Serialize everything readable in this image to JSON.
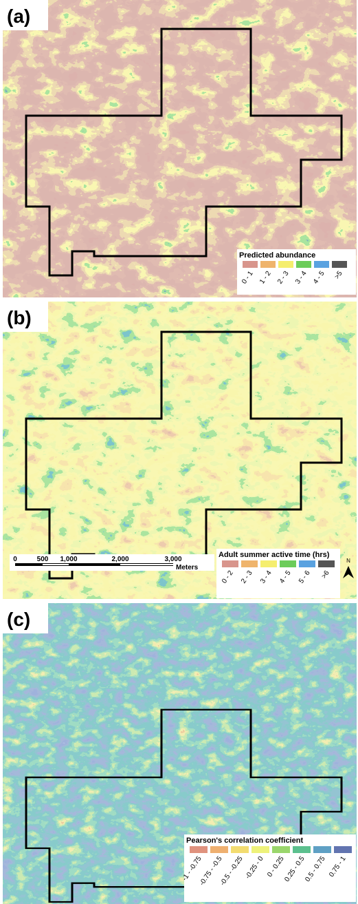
{
  "panels": [
    {
      "label": "(a)",
      "legend": {
        "title": "Predicted abundance",
        "classes": [
          {
            "label": "0 - 1",
            "color": "#d8958c"
          },
          {
            "label": "1 - 2",
            "color": "#efb46c"
          },
          {
            "label": "2 - 3",
            "color": "#f5ee6e"
          },
          {
            "label": "3 - 4",
            "color": "#6ccc5a"
          },
          {
            "label": "4 - 5",
            "color": "#5aa2e0"
          },
          {
            "label": ">5",
            "color": "#555555"
          }
        ]
      }
    },
    {
      "label": "(b)",
      "legend": {
        "title": "Adult summer active time (hrs)",
        "classes": [
          {
            "label": "0 - 2",
            "color": "#d8958c"
          },
          {
            "label": "2 - 3",
            "color": "#efb46c"
          },
          {
            "label": "3 - 4",
            "color": "#f5ee6e"
          },
          {
            "label": "4 - 5",
            "color": "#6ccc5a"
          },
          {
            "label": "5 - 6",
            "color": "#5aa2e0"
          },
          {
            "label": ">6",
            "color": "#555555"
          }
        ]
      }
    },
    {
      "label": "(c)",
      "legend": {
        "title": "Pearson's correlation coefficient",
        "classes": [
          {
            "label": "-1 - -0.75",
            "color": "#e0927e"
          },
          {
            "label": "-0.75 - -0.5",
            "color": "#efb070"
          },
          {
            "label": "-0.5 - -0.25",
            "color": "#f3dc70"
          },
          {
            "label": "-0.25 - 0",
            "color": "#eef27a"
          },
          {
            "label": "0 - 0.25",
            "color": "#9ad66c"
          },
          {
            "label": "0.25 - 0.5",
            "color": "#5cc08e"
          },
          {
            "label": "0.5 - 0.75",
            "color": "#5fa0c4"
          },
          {
            "label": "0.75 - 1",
            "color": "#6274b0"
          }
        ]
      }
    }
  ],
  "scale_bar": {
    "ticks": [
      "0",
      "500",
      "1,000",
      "2,000",
      "3,000"
    ],
    "unit": "Meters"
  },
  "north_arrow": "N"
}
